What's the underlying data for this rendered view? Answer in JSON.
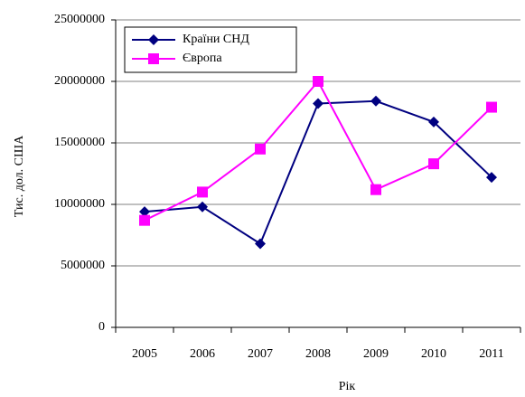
{
  "chart_data": {
    "type": "line",
    "y_label": "Тис. дол. США",
    "x_label": "Рік",
    "categories": [
      "2005",
      "2006",
      "2007",
      "2008",
      "2009",
      "2010",
      "2011"
    ],
    "series": [
      {
        "name": "Країни СНД",
        "color": "#000080",
        "marker": "diamond",
        "values": [
          9400000,
          9800000,
          6800000,
          18200000,
          18400000,
          16700000,
          12200000
        ]
      },
      {
        "name": "Європа",
        "color": "#ff00ff",
        "marker": "square",
        "values": [
          8700000,
          11000000,
          14500000,
          20000000,
          11200000,
          13300000,
          17900000
        ]
      }
    ],
    "ylim": [
      0,
      25000000
    ],
    "yticks": [
      0,
      5000000,
      10000000,
      15000000,
      20000000,
      25000000
    ],
    "grid": true,
    "legend": "upper left"
  }
}
